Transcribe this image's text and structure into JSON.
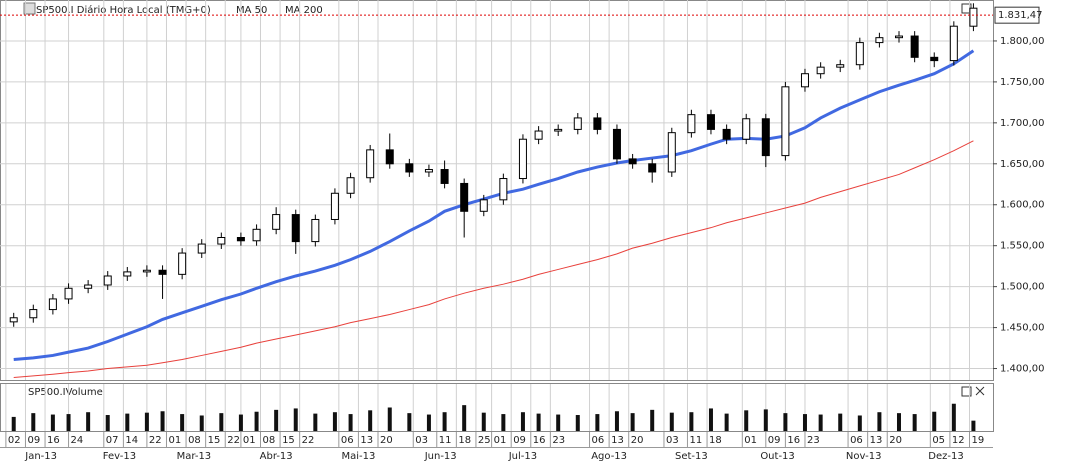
{
  "chart_data": {
    "type": "candlestick",
    "title": "SP500.I Diário Hora Local (TMG+0)",
    "volume_title": "SP500.IVolume",
    "grid": true,
    "up_color": "#ffffff",
    "down_color": "#000000",
    "x": [
      2,
      7,
      12,
      16,
      21,
      26,
      31,
      36,
      40,
      45,
      50,
      55,
      60,
      64,
      69,
      74,
      79,
      84,
      88,
      93,
      98,
      103,
      108,
      112,
      117,
      122,
      127,
      132,
      136,
      141,
      146,
      151,
      156,
      160,
      165,
      170,
      175,
      180,
      184,
      189,
      194,
      199,
      204,
      208,
      213,
      218,
      223,
      228,
      232,
      237,
      242,
      247
    ],
    "open": [
      1457,
      1462,
      1472,
      1485,
      1498,
      1502,
      1513,
      1518,
      1520,
      1515,
      1541,
      1552,
      1560,
      1556,
      1570,
      1588,
      1555,
      1582,
      1614,
      1633,
      1667,
      1650,
      1640,
      1643,
      1626,
      1592,
      1606,
      1632,
      1680,
      1690,
      1692,
      1706,
      1692,
      1656,
      1650,
      1640,
      1688,
      1710,
      1692,
      1680,
      1705,
      1660,
      1744,
      1760,
      1768,
      1771,
      1798,
      1804,
      1806,
      1780,
      1776,
      1818
    ],
    "high": [
      1468,
      1478,
      1491,
      1504,
      1508,
      1519,
      1524,
      1526,
      1526,
      1547,
      1558,
      1566,
      1566,
      1576,
      1597,
      1594,
      1588,
      1620,
      1639,
      1673,
      1687,
      1656,
      1649,
      1654,
      1632,
      1612,
      1638,
      1686,
      1696,
      1698,
      1712,
      1712,
      1698,
      1662,
      1656,
      1694,
      1716,
      1716,
      1698,
      1711,
      1711,
      1750,
      1766,
      1774,
      1777,
      1804,
      1810,
      1812,
      1812,
      1786,
      1824,
      1846
    ],
    "low": [
      1451,
      1456,
      1466,
      1479,
      1492,
      1496,
      1507,
      1512,
      1485,
      1509,
      1535,
      1546,
      1550,
      1550,
      1564,
      1540,
      1549,
      1576,
      1608,
      1627,
      1644,
      1634,
      1634,
      1620,
      1560,
      1586,
      1600,
      1626,
      1674,
      1684,
      1686,
      1686,
      1650,
      1644,
      1627,
      1634,
      1682,
      1686,
      1674,
      1674,
      1646,
      1654,
      1738,
      1754,
      1762,
      1765,
      1792,
      1798,
      1774,
      1768,
      1770,
      1812
    ],
    "close": [
      1462,
      1472,
      1485,
      1498,
      1502,
      1513,
      1518,
      1520,
      1515,
      1541,
      1552,
      1560,
      1556,
      1570,
      1588,
      1555,
      1582,
      1614,
      1633,
      1667,
      1650,
      1640,
      1643,
      1626,
      1592,
      1606,
      1632,
      1680,
      1690,
      1692,
      1706,
      1692,
      1656,
      1650,
      1640,
      1688,
      1710,
      1692,
      1680,
      1705,
      1660,
      1744,
      1760,
      1768,
      1771,
      1798,
      1804,
      1806,
      1780,
      1776,
      1818,
      1840
    ],
    "series": [
      {
        "name": "MA 50",
        "color": "#4169e1",
        "values": [
          1411,
          1413,
          1416,
          1420,
          1425,
          1433,
          1442,
          1451,
          1460,
          1468,
          1476,
          1484,
          1491,
          1498,
          1506,
          1513,
          1519,
          1526,
          1533,
          1543,
          1555,
          1568,
          1580,
          1592,
          1600,
          1607,
          1614,
          1619,
          1625,
          1632,
          1640,
          1646,
          1651,
          1654,
          1657,
          1660,
          1666,
          1674,
          1680,
          1681,
          1680,
          1684,
          1694,
          1706,
          1718,
          1728,
          1738,
          1746,
          1752,
          1760,
          1772,
          1788
        ]
      },
      {
        "name": "MA 200",
        "color": "#e8413c",
        "values": [
          1389,
          1391,
          1393,
          1395,
          1397,
          1400,
          1402,
          1404,
          1407,
          1411,
          1416,
          1421,
          1426,
          1431,
          1436,
          1441,
          1446,
          1451,
          1456,
          1461,
          1466,
          1472,
          1478,
          1485,
          1492,
          1498,
          1503,
          1509,
          1515,
          1521,
          1527,
          1533,
          1540,
          1547,
          1553,
          1560,
          1566,
          1572,
          1578,
          1584,
          1590,
          1596,
          1602,
          1609,
          1616,
          1623,
          1630,
          1637,
          1645,
          1655,
          1666,
          1678
        ]
      }
    ],
    "volume": [
      30,
      38,
      35,
      36,
      40,
      34,
      37,
      39,
      42,
      36,
      33,
      38,
      35,
      41,
      45,
      48,
      37,
      40,
      36,
      44,
      50,
      38,
      35,
      40,
      55,
      39,
      36,
      40,
      37,
      35,
      34,
      36,
      42,
      38,
      45,
      39,
      40,
      48,
      37,
      44,
      46,
      38,
      36,
      35,
      37,
      33,
      40,
      38,
      36,
      41,
      58,
      22
    ],
    "volume_ylim": [
      0,
      100
    ],
    "last_price": {
      "value": 1831.47,
      "label": "1.831,47"
    },
    "xlim": [
      -1.5,
      252
    ],
    "ylim": [
      1386,
      1850
    ],
    "yticks": [
      {
        "value": 1400,
        "label": "1.400,00"
      },
      {
        "value": 1450,
        "label": "1.450,00"
      },
      {
        "value": 1500,
        "label": "1.500,00"
      },
      {
        "value": 1550,
        "label": "1.550,00"
      },
      {
        "value": 1600,
        "label": "1.600,00"
      },
      {
        "value": 1650,
        "label": "1.650,00"
      },
      {
        "value": 1700,
        "label": "1.700,00"
      },
      {
        "value": 1750,
        "label": "1.750,00"
      },
      {
        "value": 1800,
        "label": "1.800,00"
      }
    ],
    "xticks": [
      {
        "value": 0,
        "label": "02"
      },
      {
        "value": 5,
        "label": "09"
      },
      {
        "value": 10,
        "label": "16"
      },
      {
        "value": 16,
        "label": "24"
      },
      {
        "value": 25,
        "label": "07"
      },
      {
        "value": 30,
        "label": "14"
      },
      {
        "value": 36,
        "label": "22"
      },
      {
        "value": 41,
        "label": "01"
      },
      {
        "value": 46,
        "label": "08"
      },
      {
        "value": 51,
        "label": "15"
      },
      {
        "value": 56,
        "label": "22"
      },
      {
        "value": 60,
        "label": "01"
      },
      {
        "value": 65,
        "label": "08"
      },
      {
        "value": 70,
        "label": "15"
      },
      {
        "value": 75,
        "label": "22"
      },
      {
        "value": 85,
        "label": "06"
      },
      {
        "value": 90,
        "label": "13"
      },
      {
        "value": 95,
        "label": "20"
      },
      {
        "value": 104,
        "label": "03"
      },
      {
        "value": 110,
        "label": "11"
      },
      {
        "value": 115,
        "label": "18"
      },
      {
        "value": 120,
        "label": "25"
      },
      {
        "value": 124,
        "label": "01"
      },
      {
        "value": 129,
        "label": "09"
      },
      {
        "value": 134,
        "label": "16"
      },
      {
        "value": 139,
        "label": "23"
      },
      {
        "value": 149,
        "label": "06"
      },
      {
        "value": 154,
        "label": "13"
      },
      {
        "value": 159,
        "label": "20"
      },
      {
        "value": 168,
        "label": "03"
      },
      {
        "value": 174,
        "label": "11"
      },
      {
        "value": 179,
        "label": "18"
      },
      {
        "value": 188,
        "label": "01"
      },
      {
        "value": 194,
        "label": "09"
      },
      {
        "value": 199,
        "label": "16"
      },
      {
        "value": 204,
        "label": "23"
      },
      {
        "value": 215,
        "label": "06"
      },
      {
        "value": 220,
        "label": "13"
      },
      {
        "value": 225,
        "label": "20"
      },
      {
        "value": 236,
        "label": "05"
      },
      {
        "value": 241,
        "label": "12"
      },
      {
        "value": 246,
        "label": "19"
      }
    ],
    "months": [
      {
        "value": 9,
        "label": "Jan-13"
      },
      {
        "value": 29,
        "label": "Fev-13"
      },
      {
        "value": 48,
        "label": "Mar-13"
      },
      {
        "value": 69,
        "label": "Abr-13"
      },
      {
        "value": 90,
        "label": "Mai-13"
      },
      {
        "value": 111,
        "label": "Jun-13"
      },
      {
        "value": 132,
        "label": "Jul-13"
      },
      {
        "value": 154,
        "label": "Ago-13"
      },
      {
        "value": 175,
        "label": "Set-13"
      },
      {
        "value": 197,
        "label": "Out-13"
      },
      {
        "value": 219,
        "label": "Nov-13"
      },
      {
        "value": 240,
        "label": "Dez-13"
      }
    ]
  }
}
